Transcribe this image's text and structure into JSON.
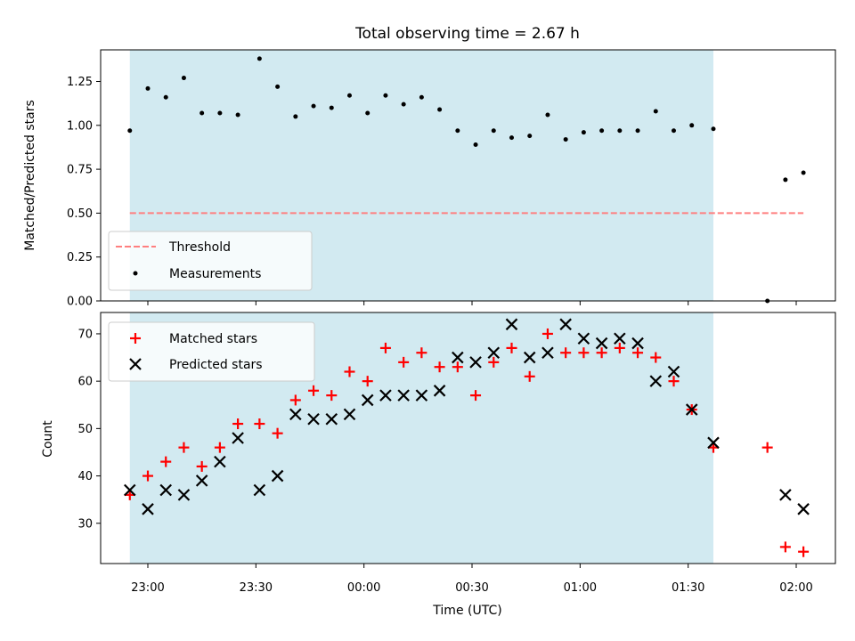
{
  "chart_data": [
    {
      "type": "scatter",
      "title": "Total observing time = 2.67 h",
      "xlabel": "",
      "ylabel": "Matched/Predicted stars",
      "ylim": [
        0.0,
        1.43
      ],
      "yticks": [
        "0.00",
        "0.25",
        "0.50",
        "0.75",
        "1.00",
        "1.25"
      ],
      "shaded_region": {
        "start": "22:55",
        "end": "01:37",
        "color": "#add8e6"
      },
      "threshold": {
        "name": "Threshold",
        "value": 0.5,
        "x_start": "22:55",
        "x_end": "02:02",
        "color": "#ff7f7f",
        "style": "dashed"
      },
      "legend": {
        "placement": "lower-left",
        "entries": [
          "Threshold",
          "Measurements"
        ]
      },
      "series": [
        {
          "name": "Measurements",
          "color": "#000000",
          "marker": "dot",
          "x": [
            "22:55",
            "23:00",
            "23:05",
            "23:10",
            "23:15",
            "23:20",
            "23:25",
            "23:31",
            "23:36",
            "23:41",
            "23:46",
            "23:51",
            "23:56",
            "00:01",
            "00:06",
            "00:11",
            "00:16",
            "00:21",
            "00:26",
            "00:31",
            "00:36",
            "00:41",
            "00:46",
            "00:51",
            "00:56",
            "01:01",
            "01:06",
            "01:11",
            "01:16",
            "01:21",
            "01:26",
            "01:31",
            "01:37",
            "01:52",
            "01:57",
            "02:02"
          ],
          "y": [
            0.97,
            1.21,
            1.16,
            1.27,
            1.07,
            1.07,
            1.06,
            1.38,
            1.22,
            1.05,
            1.11,
            1.1,
            1.17,
            1.07,
            1.17,
            1.12,
            1.16,
            1.09,
            0.97,
            0.89,
            0.97,
            0.93,
            0.94,
            1.06,
            0.92,
            0.96,
            0.97,
            0.97,
            0.97,
            1.08,
            0.97,
            1.0,
            0.98,
            0.0,
            0.69,
            0.73
          ]
        }
      ]
    },
    {
      "type": "scatter",
      "title": "",
      "xlabel": "Time (UTC)",
      "ylabel": "Count",
      "ylim": [
        21.5,
        74.5
      ],
      "yticks": [
        "30",
        "40",
        "50",
        "60",
        "70"
      ],
      "xticks": [
        "23:00",
        "23:30",
        "00:00",
        "00:30",
        "01:00",
        "01:30",
        "02:00"
      ],
      "shaded_region": {
        "start": "22:55",
        "end": "01:37",
        "color": "#add8e6"
      },
      "legend": {
        "placement": "top-left",
        "entries": [
          "Matched stars",
          "Predicted stars"
        ]
      },
      "x": [
        "22:55",
        "23:00",
        "23:05",
        "23:10",
        "23:15",
        "23:20",
        "23:25",
        "23:31",
        "23:36",
        "23:41",
        "23:46",
        "23:51",
        "23:56",
        "00:01",
        "00:06",
        "00:11",
        "00:16",
        "00:21",
        "00:26",
        "00:31",
        "00:36",
        "00:41",
        "00:46",
        "00:51",
        "00:56",
        "01:01",
        "01:06",
        "01:11",
        "01:16",
        "01:21",
        "01:26",
        "01:31",
        "01:37",
        "01:52",
        "01:57",
        "02:02"
      ],
      "series": [
        {
          "name": "Matched stars",
          "color": "#ff0000",
          "marker": "plus",
          "values": [
            36,
            40,
            43,
            46,
            42,
            46,
            51,
            51,
            49,
            56,
            58,
            57,
            62,
            60,
            67,
            64,
            66,
            63,
            63,
            57,
            64,
            67,
            61,
            70,
            66,
            66,
            66,
            67,
            66,
            65,
            60,
            54,
            46,
            46,
            25,
            24
          ]
        },
        {
          "name": "Predicted stars",
          "color": "#000000",
          "marker": "x",
          "values": [
            37,
            33,
            37,
            36,
            39,
            43,
            48,
            37,
            40,
            53,
            52,
            52,
            53,
            56,
            57,
            57,
            57,
            58,
            65,
            64,
            66,
            72,
            65,
            66,
            72,
            69,
            68,
            69,
            68,
            60,
            62,
            54,
            47,
            null,
            36,
            33
          ]
        }
      ]
    }
  ]
}
